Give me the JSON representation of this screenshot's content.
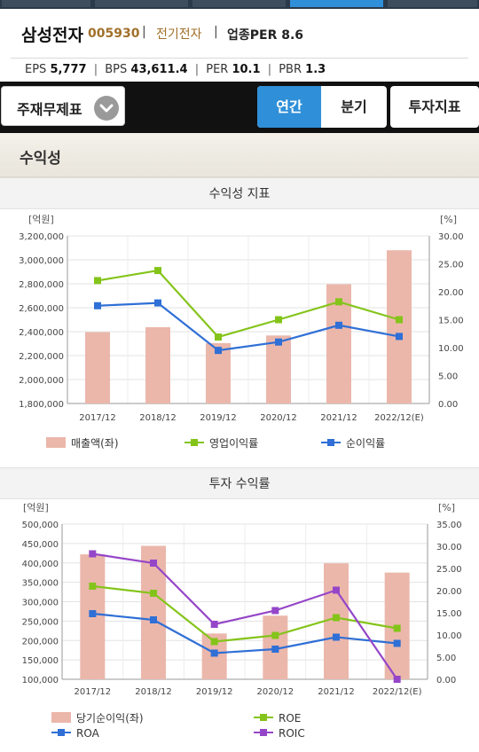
{
  "header": {
    "company_name": "삼성전자",
    "code": "005930",
    "sector": "전기전자",
    "industry_per_label": "업종PER 8.6"
  },
  "metrics": [
    {
      "label": "EPS",
      "value": "5,777"
    },
    {
      "label": "BPS",
      "value": "43,611.4"
    },
    {
      "label": "PER",
      "value": "10.1"
    },
    {
      "label": "PBR",
      "value": "1.3"
    }
  ],
  "nav": {
    "financial_label": "주재무제표",
    "annual_label": "연간",
    "quarter_label": "분기",
    "investment_label": "투자지표"
  },
  "section": {
    "title": "수익성"
  },
  "colors": {
    "bar": "#ebb7ab",
    "green": "#84c41a",
    "blue": "#2f6fd6",
    "purple": "#9546c8",
    "accent": "#2f8fd8"
  },
  "chart_data": [
    {
      "type": "bar",
      "title": "수익성 지표",
      "left_unit": "[억원]",
      "right_unit": "[%]",
      "categories": [
        "2017/12",
        "2018/12",
        "2019/12",
        "2020/12",
        "2021/12",
        "2022/12(E)"
      ],
      "ylim_left": [
        1800000,
        3200000
      ],
      "ylim_right": [
        0,
        30
      ],
      "left_ticks": [
        "3,200,000",
        "3,000,000",
        "2,800,000",
        "2,600,000",
        "2,400,000",
        "2,200,000",
        "2,000,000",
        "1,800,000"
      ],
      "right_ticks": [
        "30.00",
        "25.00",
        "20.00",
        "15.00",
        "10.00",
        "5.00",
        "0.00"
      ],
      "bars": {
        "name": "매출액(좌)",
        "values": [
          2396000,
          2437000,
          2304000,
          2368000,
          2796000,
          3080000
        ]
      },
      "series": [
        {
          "name": "영업이익률",
          "color": "green",
          "values": [
            22.0,
            23.8,
            11.9,
            15.0,
            18.2,
            15.0
          ]
        },
        {
          "name": "순이익률",
          "color": "blue",
          "values": [
            17.5,
            18.0,
            9.5,
            11.0,
            14.0,
            12.0
          ]
        }
      ]
    },
    {
      "type": "bar",
      "title": "투자 수익률",
      "left_unit": "[억원]",
      "right_unit": "[%]",
      "categories": [
        "2017/12",
        "2018/12",
        "2019/12",
        "2020/12",
        "2021/12",
        "2022/12(E)"
      ],
      "ylim_left": [
        100000,
        500000
      ],
      "ylim_right": [
        0,
        35
      ],
      "left_ticks": [
        "500,000",
        "450,000",
        "400,000",
        "350,000",
        "300,000",
        "250,000",
        "200,000",
        "150,000",
        "100,000"
      ],
      "right_ticks": [
        "35.00",
        "30.00",
        "25.00",
        "20.00",
        "15.00",
        "10.00",
        "5.00",
        "0.00"
      ],
      "bars": {
        "name": "당기순이익(좌)",
        "values": [
          422000,
          444000,
          218000,
          264000,
          399000,
          375000
        ]
      },
      "series": [
        {
          "name": "ROE",
          "color": "green",
          "values": [
            21.0,
            19.4,
            8.5,
            9.9,
            13.9,
            11.5
          ]
        },
        {
          "name": "ROA",
          "color": "blue",
          "values": [
            14.8,
            13.4,
            5.9,
            6.8,
            9.5,
            8.1
          ]
        },
        {
          "name": "ROIC",
          "color": "purple",
          "values": [
            28.3,
            26.2,
            12.4,
            15.5,
            20.1,
            0.0
          ]
        }
      ]
    }
  ]
}
